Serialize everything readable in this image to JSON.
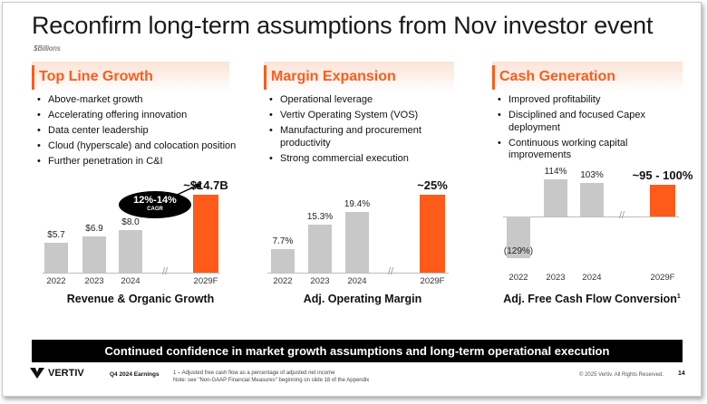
{
  "title": "Reconfirm long-term assumptions from Nov investor event",
  "subtitle": "$Billions",
  "columns": [
    {
      "heading": "Top Line Growth",
      "bullets": [
        "Above-market growth",
        "Accelerating offering innovation",
        "Data center leadership",
        "Cloud (hyperscale) and colocation position",
        "Further penetration in C&I"
      ],
      "chart_title": "Revenue & Organic Growth"
    },
    {
      "heading": "Margin Expansion",
      "bullets": [
        "Operational leverage",
        "Vertiv Operating System (VOS)",
        "Manufacturing and procurement productivity",
        "Strong commercial execution"
      ],
      "chart_title": "Adj. Operating Margin"
    },
    {
      "heading": "Cash Generation",
      "bullets": [
        "Improved profitability",
        "Disciplined and focused Capex deployment",
        "Continuous working capital improvements"
      ],
      "chart_title": "Adj. Free Cash Flow Conversion",
      "chart_title_sup": "1"
    }
  ],
  "cagr": {
    "value": "12%-14%",
    "label": "CAGR"
  },
  "chart_data": [
    {
      "type": "bar",
      "categories": [
        "2022",
        "2023",
        "2024",
        "2029F"
      ],
      "values": [
        5.7,
        6.9,
        8.0,
        14.7
      ],
      "labels": [
        "$5.7",
        "$6.9",
        "$8.0",
        "~$14.7B"
      ],
      "title": "Revenue & Organic Growth",
      "highlight_color": "#FE5B1A",
      "base_color": "#C8C8C8"
    },
    {
      "type": "bar",
      "categories": [
        "2022",
        "2023",
        "2024",
        "2029F"
      ],
      "values": [
        7.7,
        15.3,
        19.4,
        25
      ],
      "labels": [
        "7.7%",
        "15.3%",
        "19.4%",
        "~25%"
      ],
      "title": "Adj. Operating Margin",
      "highlight_color": "#FE5B1A",
      "base_color": "#C8C8C8"
    },
    {
      "type": "bar",
      "categories": [
        "2022",
        "2023",
        "2024",
        "2029F"
      ],
      "values": [
        -129,
        114,
        103,
        97.5
      ],
      "labels": [
        "(129%)",
        "114%",
        "103%",
        "~95 - 100%"
      ],
      "title": "Adj. Free Cash Flow Conversion",
      "highlight_color": "#FE5B1A",
      "base_color": "#C8C8C8"
    }
  ],
  "banner": "Continued confidence in market growth assumptions and long-term operational execution",
  "footer": {
    "logo": "VERTIV",
    "quarter": "Q4 2024 Earnings",
    "note1": "1 – Adjusted free cash flow as a percentage of adjusted net income",
    "note2": "Note: see \"Non-GAAP Financial Measures\" beginning on slide 18 of the Appendix",
    "copyright": "© 2025 Vertiv. All Rights Reserved.",
    "page": "14"
  },
  "colors": {
    "accent": "#FE5B1A",
    "bar": "#C8C8C8",
    "banner": "#000000"
  }
}
